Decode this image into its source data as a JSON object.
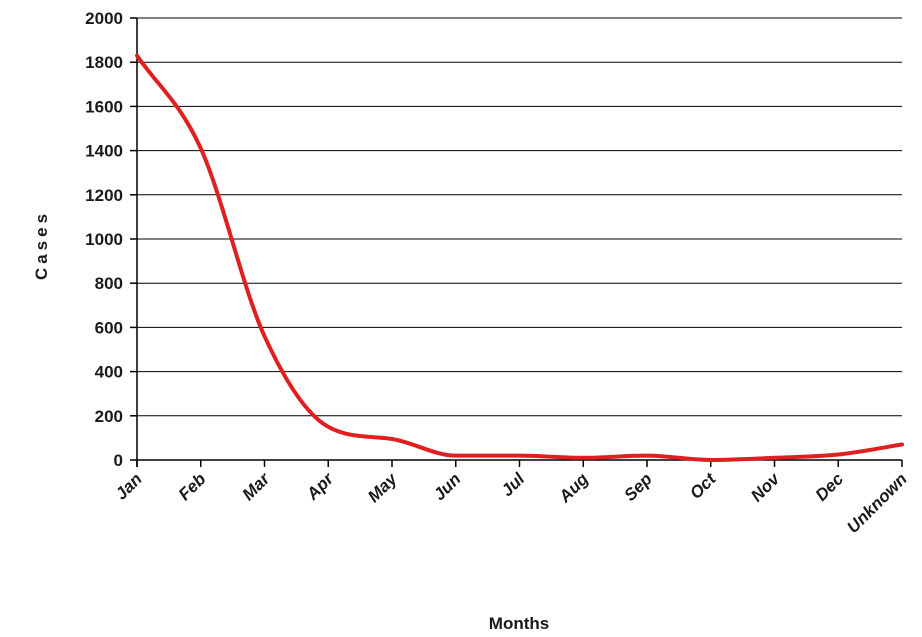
{
  "chart_data": {
    "type": "line",
    "title": "",
    "xlabel": "Months",
    "ylabel": "Cases",
    "ylim": [
      0,
      2000
    ],
    "yticks": [
      0,
      200,
      400,
      600,
      800,
      1000,
      1200,
      1400,
      1600,
      1800,
      2000
    ],
    "grid": true,
    "legend": "none",
    "categories": [
      "Jan",
      "Feb",
      "Mar",
      "Apr",
      "May",
      "Jun",
      "Jul",
      "Aug",
      "Sep",
      "Oct",
      "Nov",
      "Dec",
      "Unknown"
    ],
    "series": [
      {
        "values": [
          1830,
          1410,
          560,
          150,
          95,
          20,
          20,
          10,
          20,
          0,
          10,
          25,
          70
        ],
        "color": "#e02020"
      }
    ]
  }
}
